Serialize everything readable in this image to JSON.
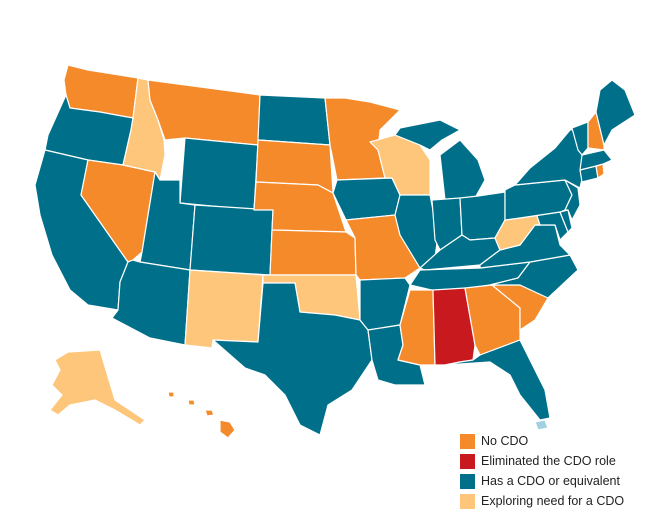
{
  "colors": {
    "no_cdo": "#f58a2b",
    "eliminated": "#c8191f",
    "has_cdo": "#00708a",
    "exploring": "#fec67a",
    "water": "#9fd1e0"
  },
  "legend": [
    {
      "label": "No CDO",
      "color_key": "no_cdo"
    },
    {
      "label": "Eliminated the CDO role",
      "color_key": "eliminated"
    },
    {
      "label": "Has a CDO or equivalent",
      "color_key": "has_cdo"
    },
    {
      "label": "Exploring need for a CDO",
      "color_key": "exploring"
    }
  ],
  "states": {
    "WA": "no_cdo",
    "OR": "has_cdo",
    "CA": "has_cdo",
    "NV": "no_cdo",
    "ID": "exploring",
    "MT": "no_cdo",
    "WY": "has_cdo",
    "UT": "has_cdo",
    "AZ": "has_cdo",
    "CO": "has_cdo",
    "NM": "exploring",
    "ND": "has_cdo",
    "SD": "no_cdo",
    "NE": "no_cdo",
    "KS": "no_cdo",
    "OK": "exploring",
    "TX": "has_cdo",
    "MN": "no_cdo",
    "IA": "has_cdo",
    "MO": "no_cdo",
    "AR": "has_cdo",
    "LA": "has_cdo",
    "WI": "exploring",
    "IL": "has_cdo",
    "MI": "has_cdo",
    "IN": "has_cdo",
    "OH": "has_cdo",
    "KY": "has_cdo",
    "TN": "has_cdo",
    "MS": "no_cdo",
    "AL": "eliminated",
    "GA": "no_cdo",
    "FL": "has_cdo",
    "SC": "no_cdo",
    "NC": "has_cdo",
    "VA": "has_cdo",
    "WV": "exploring",
    "MD": "has_cdo",
    "DE": "has_cdo",
    "PA": "has_cdo",
    "NJ": "has_cdo",
    "NY": "has_cdo",
    "CT": "has_cdo",
    "RI": "no_cdo",
    "MA": "has_cdo",
    "VT": "has_cdo",
    "NH": "no_cdo",
    "ME": "has_cdo",
    "AK": "exploring",
    "HI": "no_cdo",
    "PR": "water"
  }
}
